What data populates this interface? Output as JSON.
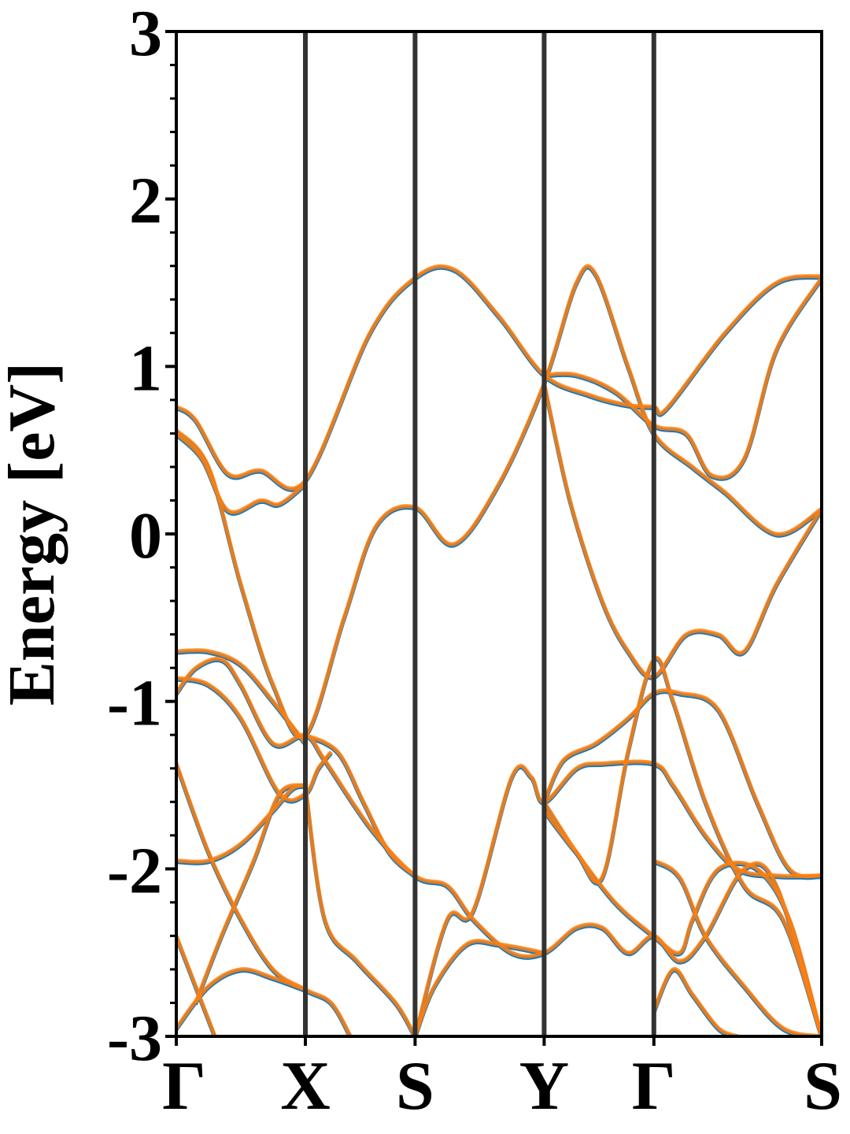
{
  "chart_data": {
    "type": "line",
    "ylabel": "Energy [eV]",
    "ylim": [
      -3,
      3
    ],
    "yticks": [
      -3,
      -2,
      -1,
      0,
      1,
      2,
      3
    ],
    "ytick_labels": [
      "-3",
      "-2",
      "-1",
      "0",
      "1",
      "2",
      "3"
    ],
    "xlim": [
      0,
      1
    ],
    "kpoints": [
      {
        "label": "Γ",
        "x": 0.0
      },
      {
        "label": "X",
        "x": 0.2
      },
      {
        "label": "S",
        "x": 0.37
      },
      {
        "label": "Y",
        "x": 0.57
      },
      {
        "label": "Γ",
        "x": 0.74
      },
      {
        "label": "S",
        "x": 1.0
      }
    ],
    "grid": false,
    "colors": {
      "series_a": "#1f77b4",
      "series_b": "#ff7f0e",
      "kpath_line": "#333333"
    },
    "series": [
      {
        "bands": [
          [
            [
              0,
              0.76
            ],
            [
              0.03,
              0.68
            ],
            [
              0.08,
              0.36
            ],
            [
              0.13,
              0.38
            ],
            [
              0.2,
              0.32
            ],
            [
              0.3,
              1.2
            ],
            [
              0.37,
              1.53
            ],
            [
              0.43,
              1.58
            ],
            [
              0.5,
              1.3
            ],
            [
              0.57,
              0.95
            ],
            [
              0.64,
              0.83
            ],
            [
              0.7,
              0.77
            ],
            [
              0.74,
              0.76
            ],
            [
              0.76,
              0.75
            ],
            [
              0.85,
              1.2
            ],
            [
              0.93,
              1.5
            ],
            [
              1.0,
              1.54
            ]
          ],
          [
            [
              0,
              0.6
            ],
            [
              0.04,
              0.45
            ],
            [
              0.08,
              0.14
            ],
            [
              0.13,
              0.2
            ],
            [
              0.16,
              0.18
            ],
            [
              0.2,
              0.3
            ]
          ],
          [
            [
              0,
              0.62
            ],
            [
              0.05,
              0.4
            ],
            [
              0.1,
              -0.3
            ],
            [
              0.15,
              -0.9
            ],
            [
              0.2,
              -1.2
            ],
            [
              0.26,
              -0.5
            ],
            [
              0.31,
              0.05
            ],
            [
              0.37,
              0.16
            ],
            [
              0.43,
              -0.06
            ],
            [
              0.5,
              0.3
            ],
            [
              0.57,
              0.9
            ],
            [
              0.62,
              1.5
            ],
            [
              0.65,
              1.55
            ],
            [
              0.7,
              1.0
            ],
            [
              0.74,
              0.6
            ],
            [
              0.8,
              0.4
            ],
            [
              0.85,
              0.25
            ],
            [
              0.93,
              0.0
            ],
            [
              1.0,
              0.15
            ]
          ],
          [
            [
              0.57,
              0.95
            ],
            [
              0.62,
              0.95
            ],
            [
              0.68,
              0.85
            ],
            [
              0.74,
              0.65
            ],
            [
              0.79,
              0.6
            ],
            [
              0.83,
              0.35
            ],
            [
              0.88,
              0.45
            ],
            [
              0.93,
              1.1
            ],
            [
              1.0,
              1.53
            ]
          ],
          [
            [
              0.57,
              0.9
            ],
            [
              0.61,
              0.2
            ],
            [
              0.66,
              -0.4
            ],
            [
              0.7,
              -0.7
            ],
            [
              0.74,
              -0.85
            ],
            [
              0.79,
              -0.6
            ],
            [
              0.84,
              -0.6
            ],
            [
              0.88,
              -0.7
            ],
            [
              0.93,
              -0.3
            ],
            [
              1.0,
              0.15
            ]
          ],
          [
            [
              0,
              -0.7
            ],
            [
              0.05,
              -0.7
            ],
            [
              0.1,
              -0.78
            ],
            [
              0.15,
              -1.0
            ],
            [
              0.2,
              -1.25
            ]
          ],
          [
            [
              0,
              -0.95
            ],
            [
              0.03,
              -0.8
            ],
            [
              0.07,
              -0.75
            ],
            [
              0.1,
              -0.9
            ],
            [
              0.15,
              -1.25
            ],
            [
              0.2,
              -1.2
            ],
            [
              0.23,
              -1.35
            ],
            [
              0.3,
              -1.75
            ],
            [
              0.37,
              -2.04
            ],
            [
              0.42,
              -2.1
            ],
            [
              0.46,
              -2.3
            ],
            [
              0.52,
              -2.5
            ],
            [
              0.57,
              -2.5
            ],
            [
              0.62,
              -2.35
            ],
            [
              0.66,
              -2.35
            ],
            [
              0.7,
              -2.5
            ],
            [
              0.74,
              -2.4
            ],
            [
              0.78,
              -2.55
            ],
            [
              0.82,
              -2.4
            ],
            [
              0.88,
              -2.0
            ],
            [
              0.93,
              -2.1
            ],
            [
              1.0,
              -3.0
            ]
          ],
          [
            [
              0,
              -0.86
            ],
            [
              0.05,
              -0.9
            ],
            [
              0.1,
              -1.1
            ],
            [
              0.16,
              -1.55
            ],
            [
              0.2,
              -1.55
            ],
            [
              0.22,
              -1.4
            ],
            [
              0.24,
              -1.3
            ]
          ],
          [
            [
              0.2,
              -1.2
            ],
            [
              0.25,
              -1.3
            ],
            [
              0.29,
              -1.6
            ],
            [
              0.33,
              -1.9
            ],
            [
              0.37,
              -2.04
            ]
          ],
          [
            [
              0,
              -1.95
            ],
            [
              0.05,
              -1.95
            ],
            [
              0.1,
              -1.85
            ],
            [
              0.15,
              -1.65
            ],
            [
              0.18,
              -1.52
            ],
            [
              0.2,
              -1.5
            ]
          ],
          [
            [
              0,
              -1.37
            ],
            [
              0.05,
              -1.9
            ],
            [
              0.1,
              -2.3
            ],
            [
              0.15,
              -2.6
            ],
            [
              0.2,
              -2.72
            ],
            [
              0.24,
              -2.8
            ],
            [
              0.27,
              -3.0
            ]
          ],
          [
            [
              0,
              -2.4
            ],
            [
              0.03,
              -2.7
            ],
            [
              0.06,
              -3.0
            ]
          ],
          [
            [
              0,
              -2.95
            ],
            [
              0.05,
              -2.7
            ],
            [
              0.1,
              -2.6
            ],
            [
              0.15,
              -2.65
            ],
            [
              0.2,
              -2.72
            ]
          ],
          [
            [
              0.03,
              -2.8
            ],
            [
              0.07,
              -2.4
            ],
            [
              0.12,
              -1.95
            ],
            [
              0.16,
              -1.55
            ],
            [
              0.2,
              -1.5
            ]
          ],
          [
            [
              0.2,
              -1.5
            ],
            [
              0.23,
              -2.3
            ],
            [
              0.28,
              -2.55
            ],
            [
              0.34,
              -2.8
            ],
            [
              0.37,
              -3.0
            ]
          ],
          [
            [
              0.37,
              -3.0
            ],
            [
              0.4,
              -2.7
            ],
            [
              0.45,
              -2.45
            ],
            [
              0.5,
              -2.45
            ],
            [
              0.57,
              -2.5
            ]
          ],
          [
            [
              0.37,
              -3.0
            ],
            [
              0.42,
              -2.3
            ],
            [
              0.46,
              -2.25
            ],
            [
              0.52,
              -1.45
            ],
            [
              0.55,
              -1.45
            ],
            [
              0.57,
              -1.6
            ],
            [
              0.62,
              -1.4
            ],
            [
              0.66,
              -1.37
            ],
            [
              0.74,
              -1.37
            ],
            [
              0.77,
              -1.5
            ],
            [
              0.82,
              -1.8
            ],
            [
              0.87,
              -2.0
            ],
            [
              0.93,
              -2.04
            ],
            [
              1.0,
              -2.04
            ]
          ],
          [
            [
              0.57,
              -1.6
            ],
            [
              0.6,
              -1.35
            ],
            [
              0.65,
              -1.25
            ],
            [
              0.7,
              -1.1
            ],
            [
              0.74,
              -0.95
            ],
            [
              0.78,
              -0.95
            ],
            [
              0.84,
              -1.05
            ],
            [
              0.9,
              -1.6
            ],
            [
              0.95,
              -2.0
            ],
            [
              1.0,
              -2.04
            ]
          ],
          [
            [
              0.57,
              -1.65
            ],
            [
              0.62,
              -1.9
            ],
            [
              0.66,
              -2.05
            ],
            [
              0.7,
              -1.3
            ],
            [
              0.74,
              -0.75
            ],
            [
              0.77,
              -1.0
            ],
            [
              0.82,
              -1.6
            ],
            [
              0.88,
              -2.1
            ],
            [
              0.94,
              -2.3
            ],
            [
              1.0,
              -3.0
            ]
          ],
          [
            [
              0.57,
              -1.6
            ],
            [
              0.62,
              -1.9
            ],
            [
              0.68,
              -2.2
            ],
            [
              0.74,
              -2.4
            ],
            [
              0.78,
              -2.5
            ],
            [
              0.8,
              -2.3
            ],
            [
              0.84,
              -2.0
            ],
            [
              0.9,
              -2.0
            ],
            [
              0.95,
              -2.3
            ],
            [
              1.0,
              -3.0
            ]
          ],
          [
            [
              0.74,
              -1.95
            ],
            [
              0.78,
              -2.05
            ],
            [
              0.82,
              -2.4
            ],
            [
              0.88,
              -2.7
            ],
            [
              0.94,
              -2.95
            ],
            [
              1.0,
              -3.0
            ]
          ],
          [
            [
              0.74,
              -2.85
            ],
            [
              0.77,
              -2.6
            ],
            [
              0.8,
              -2.75
            ],
            [
              0.84,
              -2.95
            ],
            [
              0.87,
              -3.0
            ]
          ]
        ]
      }
    ]
  }
}
